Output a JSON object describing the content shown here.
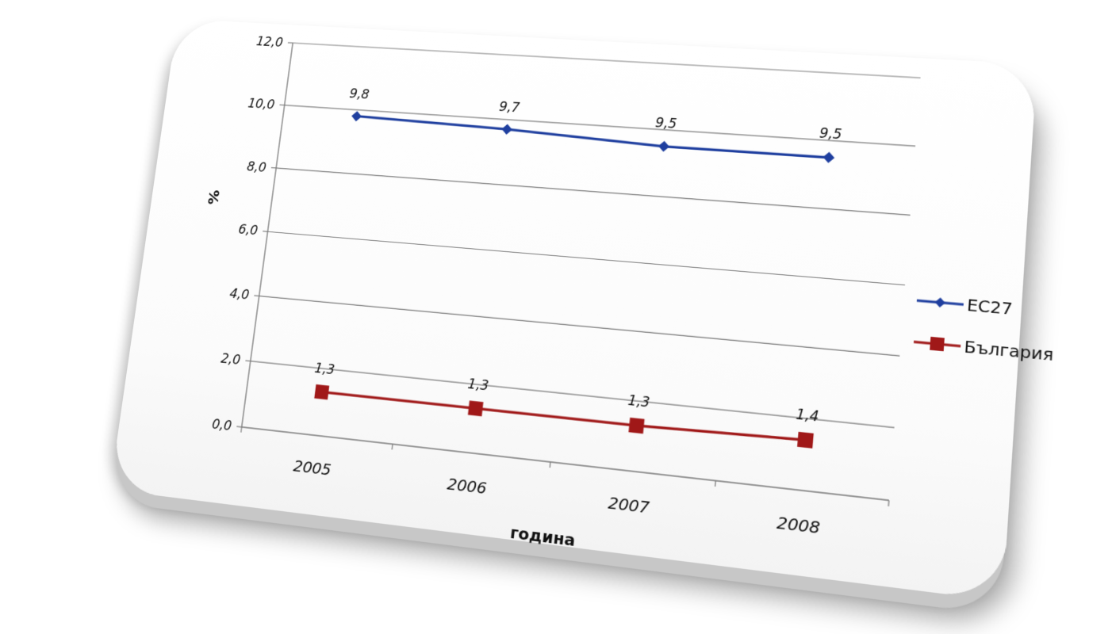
{
  "chart_data": {
    "type": "line",
    "title": "",
    "xlabel": "година",
    "ylabel": "%",
    "categories": [
      "2005",
      "2006",
      "2007",
      "2008"
    ],
    "ylim": [
      0,
      12
    ],
    "yticks": [
      "0,0",
      "2,0",
      "4,0",
      "6,0",
      "8,0",
      "10,0",
      "12,0"
    ],
    "grid": true,
    "legend_position": "right",
    "series": [
      {
        "name": "ЕС27",
        "values": [
          9.8,
          9.7,
          9.5,
          9.5
        ],
        "labels": [
          "9,8",
          "9,7",
          "9,5",
          "9,5"
        ],
        "color": "#1f3f9f",
        "marker": "diamond"
      },
      {
        "name": "България",
        "values": [
          1.3,
          1.3,
          1.3,
          1.4
        ],
        "labels": [
          "1,3",
          "1,3",
          "1,3",
          "1,4"
        ],
        "color": "#a01818",
        "marker": "square"
      }
    ]
  }
}
